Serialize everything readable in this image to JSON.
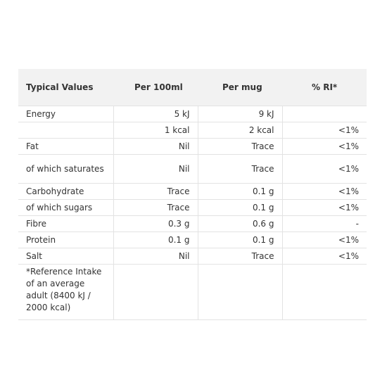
{
  "table": {
    "headers": [
      "Typical Values",
      "Per 100ml",
      "Per mug",
      "% RI*"
    ],
    "rows": [
      [
        "Energy",
        "5 kJ",
        "9 kJ",
        ""
      ],
      [
        "",
        "1 kcal",
        "2 kcal",
        "<1%"
      ],
      [
        "Fat",
        "Nil",
        "Trace",
        "<1%"
      ],
      [
        "of which saturates",
        "Nil",
        "Trace",
        "<1%"
      ],
      [
        "Carbohydrate",
        "Trace",
        "0.1 g",
        "<1%"
      ],
      [
        "of which sugars",
        "Trace",
        "0.1 g",
        "<1%"
      ],
      [
        "Fibre",
        "0.3 g",
        "0.6 g",
        "-"
      ],
      [
        "Protein",
        "0.1 g",
        "0.1 g",
        "<1%"
      ],
      [
        "Salt",
        "Nil",
        "Trace",
        "<1%"
      ]
    ],
    "footnote": "*Reference Intake of an average adult (8400 kJ / 2000 kcal)"
  }
}
